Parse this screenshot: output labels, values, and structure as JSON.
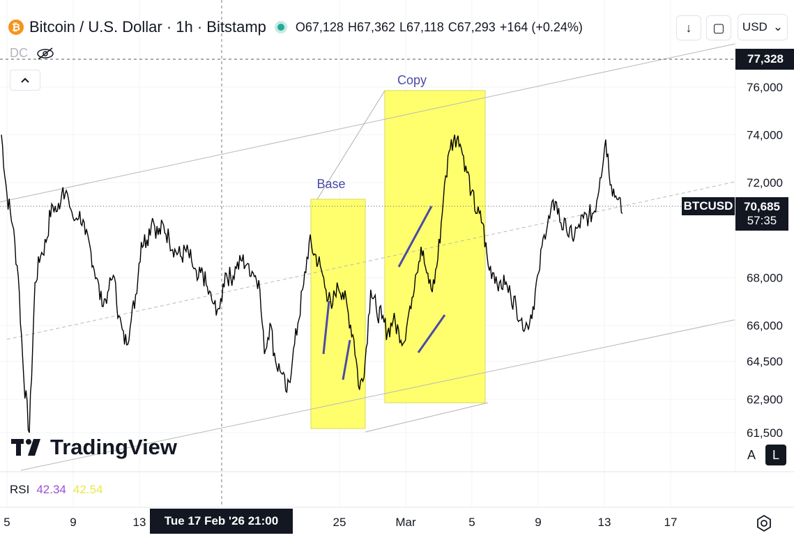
{
  "header": {
    "coin_glyph": "₿",
    "title": "Bitcoin / U.S. Dollar · 1h · Bitstamp",
    "ohlc": {
      "open": "O67,128",
      "high": "H67,362",
      "low": "L67,118",
      "close": "C67,293",
      "change": "+164 (+0.24%)"
    },
    "currency": "USD",
    "buttons": {
      "down_icon": "↓",
      "replay_icon": "▢"
    }
  },
  "indicator_row": {
    "label": "DC",
    "hidden_icon": "eye-off-icon"
  },
  "collapse_icon": "chevron-up-icon",
  "logo": "TradingView",
  "rsi": {
    "label": "RSI",
    "value1": "42.34",
    "value2": "42.54"
  },
  "crosshair": {
    "time_label": "Tue 17 Feb '26   21:00"
  },
  "scale_buttons": {
    "auto": "A",
    "log": "L"
  },
  "colors": {
    "background": "#ffffff",
    "price_line": "#000000",
    "highlight": "#ffff55",
    "annotation": "#4a4aa8",
    "dark_tag": "#131722"
  },
  "chart_data": {
    "type": "line",
    "symbol": "BTCUSD",
    "interval": "1h",
    "y_ticks": [
      "76,000",
      "74,000",
      "72,000",
      "68,000",
      "66,000",
      "64,500",
      "62,900",
      "61,500"
    ],
    "y_tick_values": [
      76000,
      74000,
      72000,
      68000,
      66000,
      64500,
      62900,
      61500
    ],
    "x_ticks": [
      "5",
      "9",
      "13",
      "25",
      "Mar",
      "5",
      "9",
      "13",
      "17"
    ],
    "crosshair_price_label": "77,328",
    "crosshair_price": 77328,
    "last_price_label": "70,685",
    "last_price": 70685,
    "countdown": "57:35",
    "annotations": [
      {
        "label": "Base",
        "type": "rectangle"
      },
      {
        "label": "Copy",
        "type": "rectangle"
      }
    ],
    "series": [
      {
        "values": [
          74000,
          71500,
          70200,
          68100,
          63800,
          61500,
          67800,
          68900,
          69500,
          71100,
          70800,
          71800,
          71300,
          70400,
          70800,
          69800,
          69100,
          68000,
          66800,
          67400,
          68100,
          66400,
          65200,
          65900,
          67300,
          69500,
          69600,
          70500,
          69800,
          70200,
          69600,
          69200,
          68900,
          69100,
          68700,
          67900,
          68200,
          67300,
          66900,
          66700,
          68200,
          68000,
          68400,
          68700,
          68600,
          68200,
          67900,
          64800,
          66100,
          64500,
          64000,
          63200,
          64500,
          66100,
          67700,
          69500,
          69000,
          68500,
          67500,
          66700,
          67800,
          67400,
          66500,
          65400,
          63300,
          64500,
          67500,
          66700,
          66300,
          65700,
          66200,
          65800,
          65300,
          66800,
          68100,
          69300,
          68200,
          67400,
          68800,
          71300,
          73300,
          74000,
          73600,
          72700,
          71600,
          70700,
          70300,
          68500,
          68200,
          67800,
          67700,
          67300,
          66800,
          66300,
          66000,
          66800,
          68200,
          69800,
          70500,
          71200,
          70300,
          70000,
          69700,
          70100,
          70500,
          70600,
          70800,
          72200,
          73800,
          71900,
          71300,
          70700
        ]
      }
    ]
  }
}
